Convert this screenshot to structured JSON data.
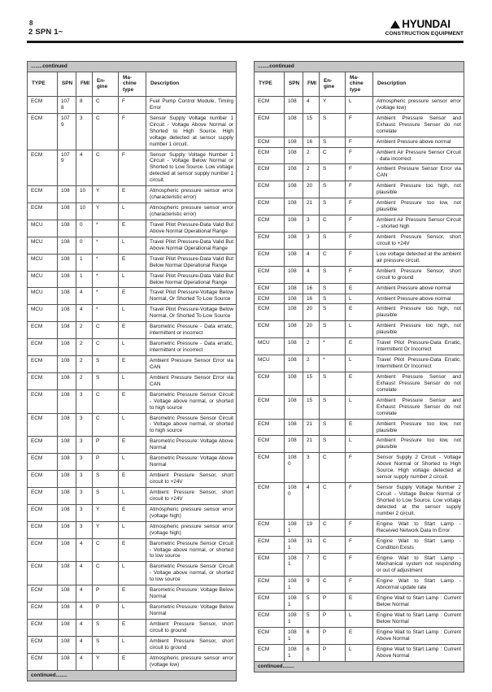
{
  "page": {
    "page_number": "8",
    "section": "2 SPN 1~"
  },
  "brand": {
    "name": "HYUNDAI",
    "tagline": "CONSTRUCTION EQUIPMENT",
    "logo_color": "#0a0a0a"
  },
  "table_common": {
    "continued_top": "........continued",
    "continued_bottom": "continued........",
    "bar_color": "#c6c6c6",
    "columns": [
      "type",
      "spn",
      "fmi",
      "engine",
      "machine",
      "description"
    ],
    "headers": [
      "TYPE",
      "SPN",
      "FMI",
      "En-\ngine",
      "Ma-\nchine\ntype",
      "Description"
    ]
  },
  "left_table": {
    "rows": [
      {
        "type": "ECM",
        "spn": "107\n8",
        "fmi": "8",
        "engine": "C",
        "machine": "F",
        "description": "Fuel Pump Control Module, Timing Error"
      },
      {
        "type": "ECM",
        "spn": "107\n9",
        "fmi": "3",
        "engine": "C",
        "machine": "F",
        "description": "Sensor Supply Voltage number 1 Circuit - Voltage Above Normal or Shorted to High Source. High voltage detected at sensor supply number 1 circuit."
      },
      {
        "type": "ECM",
        "spn": "107\n9",
        "fmi": "4",
        "engine": "C",
        "machine": "F",
        "description": "Sensor Supply Voltage Number 1 Circuit - Voltage Below Normal or Shorted to Low Source. Low voltage detected at sensor supply number 1 circuit."
      },
      {
        "type": "ECM",
        "spn": "108",
        "fmi": "10",
        "engine": "Y",
        "machine": "E",
        "description": "Atmospheric pressure sensor error (characteristic error)"
      },
      {
        "type": "ECM",
        "spn": "108",
        "fmi": "10",
        "engine": "Y",
        "machine": "L",
        "description": "Atmospheric pressure sensor error (characteristic error)"
      },
      {
        "type": "MCU",
        "spn": "108",
        "fmi": "0",
        "engine": "*",
        "machine": "E",
        "description": "Travel Pilot Pressure-Data Valid But Above Normal Operational Range"
      },
      {
        "type": "MCU",
        "spn": "108",
        "fmi": "0",
        "engine": "*",
        "machine": "L",
        "description": "Travel Pilot Pressure-Data Valid But Above Normal Operational Range"
      },
      {
        "type": "MCU",
        "spn": "108",
        "fmi": "1",
        "engine": "*",
        "machine": "E",
        "description": "Travel Pilot Pressure-Data Valid But Below Normal Operational Range"
      },
      {
        "type": "MCU",
        "spn": "108",
        "fmi": "1",
        "engine": "*",
        "machine": "L",
        "description": "Travel Pilot Pressure-Data Valid But Below Normal Operational Range"
      },
      {
        "type": "MCU",
        "spn": "108",
        "fmi": "4",
        "engine": "*",
        "machine": "E",
        "description": "Travel Pilot Pressure-Voltage Below Normal, Or Shorted To Low Source"
      },
      {
        "type": "MCU",
        "spn": "108",
        "fmi": "4",
        "engine": "*",
        "machine": "L",
        "description": "Travel Pilot Pressure-Voltage Below Normal, Or Shorted To Low Source"
      },
      {
        "type": "ECM",
        "spn": "108",
        "fmi": "2",
        "engine": "C",
        "machine": "E",
        "description": "Barometric Pressure - Data erratic, intermittent or incorrect"
      },
      {
        "type": "ECM",
        "spn": "108",
        "fmi": "2",
        "engine": "C",
        "machine": "L",
        "description": "Barometric Pressure - Data erratic, intermittent or incorrect"
      },
      {
        "type": "ECM",
        "spn": "108",
        "fmi": "2",
        "engine": "S",
        "machine": "E",
        "description": "Ambient Pressure Sensor Error via CAN"
      },
      {
        "type": "ECM",
        "spn": "108",
        "fmi": "2",
        "engine": "S",
        "machine": "L",
        "description": "Ambient Pressure Sensor Error via CAN"
      },
      {
        "type": "ECM",
        "spn": "108",
        "fmi": "3",
        "engine": "C",
        "machine": "E",
        "description": "Barometric Pressure Sensor Circuit - Voltage above normal, or shorted to high source"
      },
      {
        "type": "ECM",
        "spn": "108",
        "fmi": "3",
        "engine": "C",
        "machine": "L",
        "description": "Barometric Pressure Sensor Circuit - Voltage above normal, or shorted to high source"
      },
      {
        "type": "ECM",
        "spn": "108",
        "fmi": "3",
        "engine": "P",
        "machine": "E",
        "description": "Barometric Pressure: Voltage Above Normal"
      },
      {
        "type": "ECM",
        "spn": "108",
        "fmi": "3",
        "engine": "P",
        "machine": "L",
        "description": "Barometric Pressure: Voltage Above Normal"
      },
      {
        "type": "ECM",
        "spn": "108",
        "fmi": "3",
        "engine": "S",
        "machine": "E",
        "description": "Ambient Pressure Sensor, short circuit to +24V"
      },
      {
        "type": "ECM",
        "spn": "108",
        "fmi": "3",
        "engine": "S",
        "machine": "L",
        "description": "Ambient Pressure Sensor, short circuit to +24V"
      },
      {
        "type": "ECM",
        "spn": "108",
        "fmi": "3",
        "engine": "Y",
        "machine": "E",
        "description": "Atmospheric pressure sensor error (voltage high)"
      },
      {
        "type": "ECM",
        "spn": "108",
        "fmi": "3",
        "engine": "Y",
        "machine": "L",
        "description": "Atmospheric pressure sensor error (voltage high)"
      },
      {
        "type": "ECM",
        "spn": "108",
        "fmi": "4",
        "engine": "C",
        "machine": "E",
        "description": "Barometric Pressure Sensor Circuit - Voltage above normal, or shorted to low source"
      },
      {
        "type": "ECM",
        "spn": "108",
        "fmi": "4",
        "engine": "C",
        "machine": "L",
        "description": "Barometric Pressure Sensor Circuit - Voltage above normal, or shorted to low source"
      },
      {
        "type": "ECM",
        "spn": "108",
        "fmi": "4",
        "engine": "P",
        "machine": "E",
        "description": "Barometric Pressure: Voltage Below Normal"
      },
      {
        "type": "ECM",
        "spn": "108",
        "fmi": "4",
        "engine": "P",
        "machine": "L",
        "description": "Barometric Pressure: Voltage Below Normal"
      },
      {
        "type": "ECM",
        "spn": "108",
        "fmi": "4",
        "engine": "S",
        "machine": "E",
        "description": "Ambient Pressure Sensor, short circuit to ground"
      },
      {
        "type": "ECM",
        "spn": "108",
        "fmi": "4",
        "engine": "S",
        "machine": "L",
        "description": "Ambient Pressure Sensor, short circuit to ground"
      },
      {
        "type": "ECM",
        "spn": "108",
        "fmi": "4",
        "engine": "Y",
        "machine": "E",
        "description": "Atmospheric pressure sensor error (voltage low)"
      }
    ]
  },
  "right_table": {
    "rows": [
      {
        "type": "ECM",
        "spn": "108",
        "fmi": "4",
        "engine": "Y",
        "machine": "L",
        "description": "Atmospheric pressure sensor error (voltage low)"
      },
      {
        "type": "ECM",
        "spn": "108",
        "fmi": "15",
        "engine": "S",
        "machine": "F",
        "description": "Ambient Pressure Sensor and Exhaust Pressure Sensor do not correlate"
      },
      {
        "type": "ECM",
        "spn": "108",
        "fmi": "16",
        "engine": "S",
        "machine": "F",
        "description": "Ambient Pressure above normal"
      },
      {
        "type": "ECM",
        "spn": "108",
        "fmi": "2",
        "engine": "C",
        "machine": "F",
        "description": "Ambient Air Pressure Sensor Circuit - data incorrect"
      },
      {
        "type": "ECM",
        "spn": "108",
        "fmi": "2",
        "engine": "S",
        "machine": "F",
        "description": "Ambient Pressure Sensor Error via CAN"
      },
      {
        "type": "ECM",
        "spn": "108",
        "fmi": "20",
        "engine": "S",
        "machine": "F",
        "description": "Ambient Pressure too high, not plausible"
      },
      {
        "type": "ECM",
        "spn": "108",
        "fmi": "21",
        "engine": "S",
        "machine": "F",
        "description": "Ambient Pressure too low, not plausible"
      },
      {
        "type": "ECM",
        "spn": "108",
        "fmi": "3",
        "engine": "C",
        "machine": "F",
        "description": "Ambient Air Pressure Sensor Circuit – shorted high"
      },
      {
        "type": "ECM",
        "spn": "108",
        "fmi": "3",
        "engine": "S",
        "machine": "F",
        "description": "Ambient Pressure Sensor, short circuit to +24V"
      },
      {
        "type": "ECM",
        "spn": "108",
        "fmi": "4",
        "engine": "C",
        "machine": "F",
        "description": "Low voltage detected at the ambient air pressure circuit."
      },
      {
        "type": "ECM",
        "spn": "108",
        "fmi": "4",
        "engine": "S",
        "machine": "F",
        "description": "Ambient Pressure Sensor, short circuit to ground"
      },
      {
        "type": "ECM",
        "spn": "108",
        "fmi": "16",
        "engine": "S",
        "machine": "E",
        "description": "Ambient Pressure above normal"
      },
      {
        "type": "ECM",
        "spn": "108",
        "fmi": "16",
        "engine": "S",
        "machine": "L",
        "description": "Ambient Pressure above normal"
      },
      {
        "type": "ECM",
        "spn": "108",
        "fmi": "20",
        "engine": "S",
        "machine": "E",
        "description": "Ambient Pressure too high, not plausible"
      },
      {
        "type": "ECM",
        "spn": "108",
        "fmi": "20",
        "engine": "S",
        "machine": "L",
        "description": "Ambient Pressure too high, not plausible"
      },
      {
        "type": "MCU",
        "spn": "108",
        "fmi": "2",
        "engine": "*",
        "machine": "E",
        "description": "Travel Pilot Pressure-Data Erratic, Intermittent Or Incorrect"
      },
      {
        "type": "MCU",
        "spn": "108",
        "fmi": "2",
        "engine": "*",
        "machine": "L",
        "description": "Travel Pilot Pressure-Data Erratic, Intermittent Or Incorrect"
      },
      {
        "type": "ECM",
        "spn": "108",
        "fmi": "15",
        "engine": "S",
        "machine": "E",
        "description": "Ambient Pressure Sensor and Exhaust Pressure Sensor do not correlate"
      },
      {
        "type": "ECM",
        "spn": "108",
        "fmi": "15",
        "engine": "S",
        "machine": "L",
        "description": "Ambient Pressure Sensor and Exhaust Pressure Sensor do not correlate"
      },
      {
        "type": "ECM",
        "spn": "108",
        "fmi": "21",
        "engine": "S",
        "machine": "E",
        "description": "Ambient Pressure too low, not plausible"
      },
      {
        "type": "ECM",
        "spn": "108",
        "fmi": "21",
        "engine": "S",
        "machine": "L",
        "description": "Ambient Pressure too low, not plausible"
      },
      {
        "type": "ECM",
        "spn": "108\n0",
        "fmi": "3",
        "engine": "C",
        "machine": "F",
        "description": "Sensor Supply 2 Circuit - Voltage Above Normal or Shorted to High Source. High voltage detected at sensor supply number 2 circuit."
      },
      {
        "type": "ECM",
        "spn": "108\n0",
        "fmi": "4",
        "engine": "C",
        "machine": "F",
        "description": "Sensor Supply Voltage Number 2 Circuit - Voltage Below Normal or Shorted to Low Source. Low voltage detected at the sensor supply number 2 circuit."
      },
      {
        "type": "ECM",
        "spn": "108\n1",
        "fmi": "19",
        "engine": "C",
        "machine": "F",
        "description": "Engine Wait to Start Lamp - Received Network Data In Error"
      },
      {
        "type": "ECM",
        "spn": "108\n1",
        "fmi": "31",
        "engine": "C",
        "machine": "F",
        "description": "Engine Wait to Start Lamp - Condition Exists"
      },
      {
        "type": "ECM",
        "spn": "108\n1",
        "fmi": "7",
        "engine": "C",
        "machine": "F",
        "description": "Engine Wait to Start Lamp - Mechanical system not responding or out of adjustment"
      },
      {
        "type": "ECM",
        "spn": "108\n1",
        "fmi": "9",
        "engine": "C",
        "machine": "F",
        "description": "Engine Wait to Start Lamp - Abnormal update rate"
      },
      {
        "type": "ECM",
        "spn": "108\n1",
        "fmi": "5",
        "engine": "P",
        "machine": "E",
        "description": "Engine Wait to Start Lamp : Current Below Normal"
      },
      {
        "type": "ECM",
        "spn": "108\n1",
        "fmi": "5",
        "engine": "P",
        "machine": "L",
        "description": "Engine Wait to Start Lamp : Current Below Normal"
      },
      {
        "type": "ECM",
        "spn": "108\n1",
        "fmi": "6",
        "engine": "P",
        "machine": "E",
        "description": "Engine Wait to Start Lamp : Current Above Normal"
      },
      {
        "type": "ECM",
        "spn": "108\n1",
        "fmi": "6",
        "engine": "P",
        "machine": "L",
        "description": "Engine Wait to Start Lamp : Current Above Normal"
      }
    ]
  }
}
